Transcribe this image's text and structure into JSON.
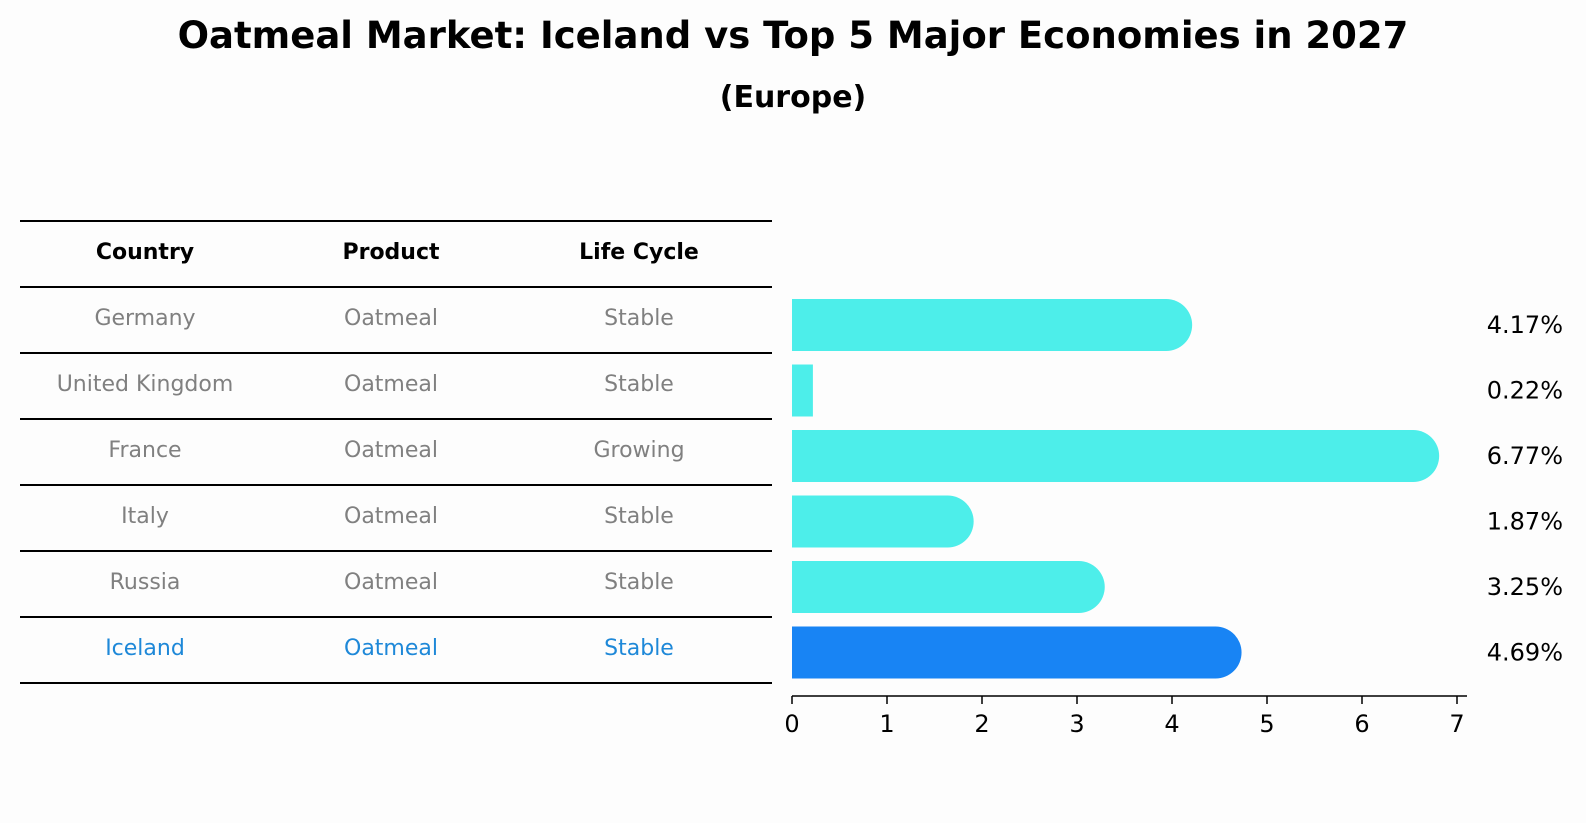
{
  "title": "Oatmeal Market: Iceland vs Top 5 Major Economies in 2027",
  "subtitle": "(Europe)",
  "table": {
    "headers": [
      "Country",
      "Product",
      "Life Cycle"
    ],
    "rows": [
      {
        "country": "Germany",
        "product": "Oatmeal",
        "life_cycle": "Stable"
      },
      {
        "country": "United Kingdom",
        "product": "Oatmeal",
        "life_cycle": "Stable"
      },
      {
        "country": "France",
        "product": "Oatmeal",
        "life_cycle": "Growing"
      },
      {
        "country": "Italy",
        "product": "Oatmeal",
        "life_cycle": "Stable"
      },
      {
        "country": "Russia",
        "product": "Oatmeal",
        "life_cycle": "Stable"
      },
      {
        "country": "Iceland",
        "product": "Oatmeal",
        "life_cycle": "Stable"
      }
    ]
  },
  "colors": {
    "bar": "#4deeea",
    "highlight_bar": "#1884f4",
    "highlight_text": "#1e88d8",
    "row_text": "#808080"
  },
  "chart_data": {
    "type": "bar",
    "orientation": "horizontal",
    "categories": [
      "Germany",
      "United Kingdom",
      "France",
      "Italy",
      "Russia",
      "Iceland"
    ],
    "values": [
      4.17,
      0.22,
      6.77,
      1.87,
      3.25,
      4.69
    ],
    "value_labels": [
      "4.17%",
      "0.22%",
      "6.77%",
      "1.87%",
      "3.25%",
      "4.69%"
    ],
    "highlight": "Iceland",
    "xlim": [
      0,
      7
    ],
    "xticks": [
      0,
      1,
      2,
      3,
      4,
      5,
      6,
      7
    ]
  }
}
